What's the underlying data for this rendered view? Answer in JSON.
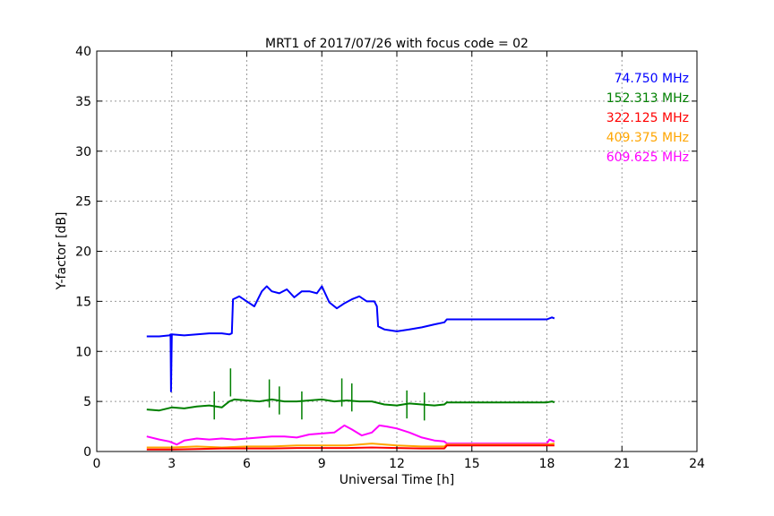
{
  "chart_data": {
    "type": "line",
    "title": "MRT1 of 2017/07/26 with focus code = 02",
    "xlabel": "Universal Time [h]",
    "ylabel": "Y-factor [dB]",
    "xlim": [
      0,
      24
    ],
    "ylim": [
      0,
      40
    ],
    "xticks": [
      0,
      3,
      6,
      9,
      12,
      15,
      18,
      21,
      24
    ],
    "yticks": [
      0,
      5,
      10,
      15,
      20,
      25,
      30,
      35,
      40
    ],
    "grid": true,
    "legend_position": "top-right",
    "series": [
      {
        "name": "74.750 MHz",
        "color": "#0000ff",
        "points": [
          [
            2.0,
            11.5
          ],
          [
            2.5,
            11.5
          ],
          [
            2.9,
            11.6
          ],
          [
            2.95,
            11.7
          ],
          [
            2.97,
            6.0
          ],
          [
            3.0,
            11.7
          ],
          [
            3.5,
            11.6
          ],
          [
            4.0,
            11.7
          ],
          [
            4.5,
            11.8
          ],
          [
            5.0,
            11.8
          ],
          [
            5.3,
            11.7
          ],
          [
            5.4,
            11.8
          ],
          [
            5.45,
            15.2
          ],
          [
            5.7,
            15.5
          ],
          [
            6.0,
            15.0
          ],
          [
            6.3,
            14.5
          ],
          [
            6.6,
            16.0
          ],
          [
            6.8,
            16.5
          ],
          [
            7.0,
            16.0
          ],
          [
            7.3,
            15.8
          ],
          [
            7.6,
            16.2
          ],
          [
            7.9,
            15.4
          ],
          [
            8.2,
            16.0
          ],
          [
            8.5,
            16.0
          ],
          [
            8.8,
            15.8
          ],
          [
            9.0,
            16.5
          ],
          [
            9.3,
            14.9
          ],
          [
            9.6,
            14.3
          ],
          [
            9.9,
            14.8
          ],
          [
            10.2,
            15.2
          ],
          [
            10.5,
            15.5
          ],
          [
            10.8,
            15.0
          ],
          [
            11.1,
            15.0
          ],
          [
            11.2,
            14.5
          ],
          [
            11.25,
            12.5
          ],
          [
            11.5,
            12.2
          ],
          [
            12.0,
            12.0
          ],
          [
            12.5,
            12.2
          ],
          [
            13.0,
            12.4
          ],
          [
            13.5,
            12.7
          ],
          [
            13.9,
            12.9
          ],
          [
            14.0,
            13.2
          ],
          [
            16.0,
            13.2
          ],
          [
            18.0,
            13.2
          ],
          [
            18.2,
            13.4
          ],
          [
            18.3,
            13.3
          ]
        ]
      },
      {
        "name": "152.313 MHz",
        "color": "#008000",
        "points": [
          [
            2.0,
            4.2
          ],
          [
            2.5,
            4.1
          ],
          [
            3.0,
            4.4
          ],
          [
            3.5,
            4.3
          ],
          [
            4.0,
            4.5
          ],
          [
            4.5,
            4.6
          ],
          [
            5.0,
            4.4
          ],
          [
            5.3,
            5.0
          ],
          [
            5.5,
            5.2
          ],
          [
            6.0,
            5.1
          ],
          [
            6.5,
            5.0
          ],
          [
            7.0,
            5.2
          ],
          [
            7.5,
            5.0
          ],
          [
            8.0,
            5.0
          ],
          [
            8.5,
            5.1
          ],
          [
            9.0,
            5.2
          ],
          [
            9.5,
            5.0
          ],
          [
            10.0,
            5.1
          ],
          [
            10.5,
            5.0
          ],
          [
            11.0,
            5.0
          ],
          [
            11.5,
            4.7
          ],
          [
            12.0,
            4.6
          ],
          [
            12.5,
            4.8
          ],
          [
            13.0,
            4.7
          ],
          [
            13.5,
            4.6
          ],
          [
            13.9,
            4.7
          ],
          [
            14.0,
            4.9
          ],
          [
            16.0,
            4.9
          ],
          [
            18.0,
            4.9
          ],
          [
            18.2,
            5.0
          ],
          [
            18.3,
            4.9
          ]
        ],
        "spikes": [
          [
            5.35,
            8.3
          ],
          [
            6.9,
            7.2
          ],
          [
            7.3,
            6.5
          ],
          [
            8.2,
            6.0
          ],
          [
            9.8,
            7.3
          ],
          [
            10.2,
            6.8
          ],
          [
            12.4,
            6.1
          ],
          [
            4.7,
            6.0
          ],
          [
            13.1,
            5.9
          ]
        ]
      },
      {
        "name": "322.125 MHz",
        "color": "#ff0000",
        "points": [
          [
            2.0,
            0.2
          ],
          [
            3.0,
            0.2
          ],
          [
            4.0,
            0.25
          ],
          [
            5.0,
            0.3
          ],
          [
            6.0,
            0.3
          ],
          [
            7.0,
            0.3
          ],
          [
            8.0,
            0.35
          ],
          [
            9.0,
            0.35
          ],
          [
            10.0,
            0.35
          ],
          [
            11.0,
            0.4
          ],
          [
            12.0,
            0.35
          ],
          [
            13.0,
            0.3
          ],
          [
            13.9,
            0.3
          ],
          [
            14.0,
            0.6
          ],
          [
            18.0,
            0.6
          ],
          [
            18.3,
            0.6
          ]
        ]
      },
      {
        "name": "409.375 MHz",
        "color": "#ffa500",
        "points": [
          [
            2.0,
            0.4
          ],
          [
            3.0,
            0.4
          ],
          [
            4.0,
            0.5
          ],
          [
            5.0,
            0.4
          ],
          [
            6.0,
            0.5
          ],
          [
            7.0,
            0.5
          ],
          [
            8.0,
            0.6
          ],
          [
            9.0,
            0.6
          ],
          [
            10.0,
            0.6
          ],
          [
            11.0,
            0.8
          ],
          [
            12.0,
            0.6
          ],
          [
            13.0,
            0.5
          ],
          [
            13.9,
            0.5
          ],
          [
            14.0,
            0.7
          ],
          [
            18.0,
            0.7
          ],
          [
            18.3,
            0.8
          ]
        ]
      },
      {
        "name": "609.625 MHz",
        "color": "#ff00ff",
        "points": [
          [
            2.0,
            1.5
          ],
          [
            2.5,
            1.2
          ],
          [
            2.9,
            1.0
          ],
          [
            3.2,
            0.7
          ],
          [
            3.5,
            1.1
          ],
          [
            4.0,
            1.3
          ],
          [
            4.5,
            1.2
          ],
          [
            5.0,
            1.3
          ],
          [
            5.5,
            1.2
          ],
          [
            6.0,
            1.3
          ],
          [
            6.5,
            1.4
          ],
          [
            7.0,
            1.5
          ],
          [
            7.5,
            1.5
          ],
          [
            8.0,
            1.4
          ],
          [
            8.5,
            1.7
          ],
          [
            9.0,
            1.8
          ],
          [
            9.5,
            1.9
          ],
          [
            9.9,
            2.6
          ],
          [
            10.2,
            2.2
          ],
          [
            10.6,
            1.6
          ],
          [
            11.0,
            1.9
          ],
          [
            11.3,
            2.6
          ],
          [
            11.6,
            2.5
          ],
          [
            12.0,
            2.3
          ],
          [
            12.5,
            1.9
          ],
          [
            13.0,
            1.4
          ],
          [
            13.5,
            1.1
          ],
          [
            13.9,
            1.0
          ],
          [
            14.0,
            0.8
          ],
          [
            18.0,
            0.8
          ],
          [
            18.1,
            1.2
          ],
          [
            18.3,
            1.0
          ]
        ]
      }
    ]
  }
}
